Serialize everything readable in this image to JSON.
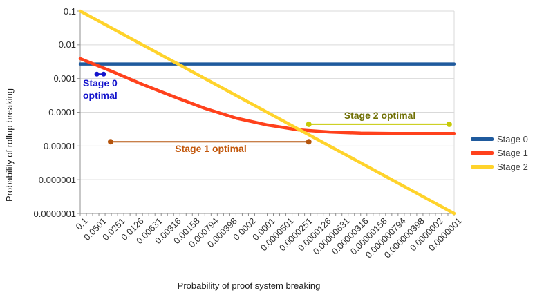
{
  "chart_data": {
    "type": "line",
    "title": "",
    "xlabel": "Probability of proof system breaking",
    "ylabel": "Probability of rollup breaking",
    "x_scale": "log",
    "y_scale": "log",
    "x_range": [
      0.1,
      1e-07
    ],
    "y_range": [
      0.1,
      1e-07
    ],
    "grid": "horizontal-only",
    "x_tick_labels": [
      "0.1",
      "0.0501",
      "0.0251",
      "0.0126",
      "0.00631",
      "0.00316",
      "0.00158",
      "0.000794",
      "0.000398",
      "0.0002",
      "0.0001",
      "0.0000501",
      "0.0000251",
      "0.0000126",
      "0.00000631",
      "0.00000316",
      "0.00000158",
      "0.000000794",
      "0.000000398",
      "0.0000002",
      "0.0000001"
    ],
    "y_tick_labels": [
      "0.1",
      "0.01",
      "0.001",
      "0.0001",
      "0.00001",
      "0.000001",
      "0.0000001"
    ],
    "series": [
      {
        "name": "Stage 0",
        "color": "#1f5a9d",
        "points": [
          [
            0.1,
            0.0027
          ],
          [
            1e-07,
            0.0027
          ]
        ]
      },
      {
        "name": "Stage 1",
        "color": "#ff411c",
        "points": [
          [
            0.1,
            0.0039
          ],
          [
            0.0316,
            0.00165
          ],
          [
            0.01,
            0.00067
          ],
          [
            0.00316,
            0.00029
          ],
          [
            0.001,
            0.00013
          ],
          [
            0.000316,
            6.7e-05
          ],
          [
            0.0001,
            4.2e-05
          ],
          [
            3.16e-05,
            3e-05
          ],
          [
            1e-05,
            2.6e-05
          ],
          [
            3.16e-06,
            2.4e-05
          ],
          [
            1e-06,
            2.35e-05
          ],
          [
            3.16e-07,
            2.35e-05
          ],
          [
            1e-07,
            2.35e-05
          ]
        ]
      },
      {
        "name": "Stage 2",
        "color": "#ffd32b",
        "points": [
          [
            0.1,
            0.1
          ],
          [
            1e-07,
            1e-07
          ]
        ]
      }
    ],
    "annotations": [
      {
        "id": "stage0-optimal",
        "label": "Stage 0 optimal",
        "label_lines": [
          "Stage 0",
          "optimal"
        ],
        "x_from": 0.054,
        "x_to": 0.042,
        "y": 0.00135,
        "marker_color": "#1414cc",
        "text_color": "#1414cc",
        "dot_radius": 3.5
      },
      {
        "id": "stage1-optimal",
        "label": "Stage 1 optimal",
        "x_from": 0.0325,
        "x_to": 2.15e-05,
        "y": 1.33e-05,
        "marker_color": "#b5550d",
        "text_color": "#c2570b",
        "dot_radius": 4
      },
      {
        "id": "stage2-optimal",
        "label": "Stage 2 optimal",
        "x_from": 2.15e-05,
        "x_to": 1.2e-07,
        "y": 4.4e-05,
        "marker_color": "#c6ca06",
        "text_color": "#6f6f04",
        "dot_radius": 4
      }
    ],
    "legend": {
      "position": "right",
      "items": [
        {
          "label": "Stage 0",
          "color": "#1f5a9d"
        },
        {
          "label": "Stage 1",
          "color": "#ff411c"
        },
        {
          "label": "Stage 2",
          "color": "#ffd32b"
        }
      ]
    },
    "style_colors": {
      "grid": "#d9d9d9",
      "axis": "#8f8f8f",
      "tick_text": "#2e2e2e"
    }
  }
}
